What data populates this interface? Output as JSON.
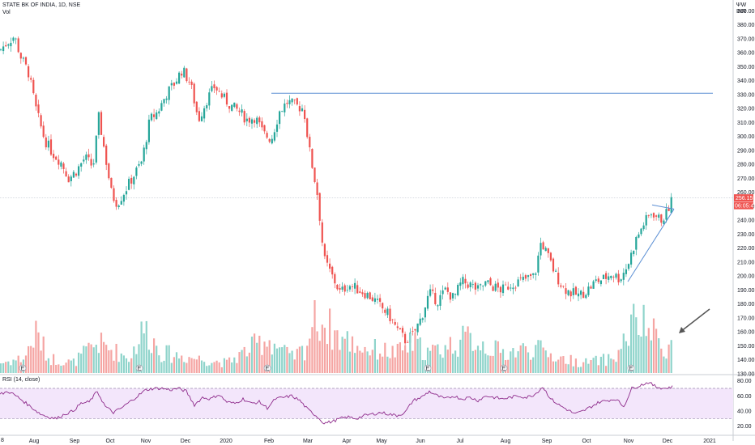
{
  "header": {
    "symbol_line": "STATE BK OF INDIA, 1D, NSE",
    "vol_label": "Vol",
    "currency_top": "ΨW",
    "currency": "INR",
    "left_edge": "8"
  },
  "price_tag": {
    "price": "256.15",
    "countdown": "06:05:42"
  },
  "rsi": {
    "label": "RSI (14, close)"
  },
  "colors": {
    "up": "#26a69a",
    "down": "#ef5350",
    "vol_up": "#8fd4cb",
    "vol_down": "#f5a5a3",
    "rsi_line": "#8e2b8b",
    "rsi_band": "#f3e6fb",
    "hline": "#5b8fd4",
    "tag": "#ef5350"
  },
  "chart_data": {
    "type": "candlestick",
    "x_labels": [
      "Aug",
      "Sep",
      "Oct",
      "Nov",
      "Dec",
      "2020",
      "Feb",
      "Mar",
      "Apr",
      "May",
      "Jun",
      "Jul",
      "Aug",
      "Sep",
      "Oct",
      "Nov",
      "Dec",
      "2021"
    ],
    "y_ticks": [
      "390.00",
      "380.00",
      "370.00",
      "360.00",
      "350.00",
      "340.00",
      "330.00",
      "320.00",
      "310.00",
      "300.00",
      "290.00",
      "280.00",
      "270.00",
      "260.00",
      "250.00",
      "240.00",
      "230.00",
      "220.00",
      "210.00",
      "200.00",
      "190.00",
      "180.00",
      "170.00",
      "160.00",
      "150.00",
      "140.00",
      "130.00"
    ],
    "ylim": [
      130,
      392
    ],
    "price_path": [
      [
        0,
        362
      ],
      [
        10,
        368
      ],
      [
        18,
        372
      ],
      [
        25,
        358
      ],
      [
        35,
        346
      ],
      [
        45,
        318
      ],
      [
        55,
        298
      ],
      [
        65,
        288
      ],
      [
        75,
        282
      ],
      [
        85,
        270
      ],
      [
        95,
        276
      ],
      [
        105,
        285
      ],
      [
        115,
        278
      ],
      [
        122,
        314
      ],
      [
        130,
        286
      ],
      [
        138,
        258
      ],
      [
        145,
        252
      ],
      [
        155,
        262
      ],
      [
        165,
        272
      ],
      [
        175,
        282
      ],
      [
        185,
        312
      ],
      [
        195,
        318
      ],
      [
        205,
        330
      ],
      [
        215,
        338
      ],
      [
        225,
        348
      ],
      [
        235,
        338
      ],
      [
        245,
        312
      ],
      [
        255,
        326
      ],
      [
        265,
        336
      ],
      [
        275,
        328
      ],
      [
        285,
        322
      ],
      [
        295,
        318
      ],
      [
        305,
        312
      ],
      [
        315,
        314
      ],
      [
        325,
        302
      ],
      [
        335,
        298
      ],
      [
        345,
        318
      ],
      [
        355,
        325
      ],
      [
        365,
        322
      ],
      [
        375,
        320
      ],
      [
        382,
        290
      ],
      [
        392,
        258
      ],
      [
        400,
        212
      ],
      [
        410,
        200
      ],
      [
        420,
        188
      ],
      [
        430,
        194
      ],
      [
        440,
        191
      ],
      [
        450,
        188
      ],
      [
        460,
        184
      ],
      [
        470,
        178
      ],
      [
        480,
        172
      ],
      [
        490,
        162
      ],
      [
        500,
        154
      ],
      [
        510,
        158
      ],
      [
        520,
        170
      ],
      [
        530,
        188
      ],
      [
        540,
        182
      ],
      [
        550,
        190
      ],
      [
        560,
        184
      ],
      [
        570,
        196
      ],
      [
        580,
        194
      ],
      [
        590,
        190
      ],
      [
        600,
        195
      ],
      [
        610,
        192
      ],
      [
        620,
        190
      ],
      [
        630,
        194
      ],
      [
        640,
        196
      ],
      [
        650,
        198
      ],
      [
        660,
        200
      ],
      [
        668,
        225
      ],
      [
        675,
        216
      ],
      [
        685,
        202
      ],
      [
        695,
        192
      ],
      [
        705,
        188
      ],
      [
        715,
        186
      ],
      [
        725,
        190
      ],
      [
        735,
        196
      ],
      [
        745,
        198
      ],
      [
        755,
        202
      ],
      [
        765,
        198
      ],
      [
        775,
        208
      ],
      [
        785,
        226
      ],
      [
        795,
        238
      ],
      [
        805,
        246
      ],
      [
        815,
        240
      ],
      [
        822,
        244
      ],
      [
        830,
        256
      ]
    ],
    "volume_path": [
      [
        0,
        2
      ],
      [
        30,
        3
      ],
      [
        45,
        8
      ],
      [
        60,
        3
      ],
      [
        90,
        2
      ],
      [
        120,
        6
      ],
      [
        160,
        3
      ],
      [
        178,
        9
      ],
      [
        200,
        4
      ],
      [
        240,
        3
      ],
      [
        280,
        2
      ],
      [
        330,
        7
      ],
      [
        360,
        3
      ],
      [
        378,
        5
      ],
      [
        388,
        12
      ],
      [
        400,
        10
      ],
      [
        420,
        7
      ],
      [
        450,
        5
      ],
      [
        490,
        4
      ],
      [
        510,
        6
      ],
      [
        530,
        4
      ],
      [
        580,
        7
      ],
      [
        620,
        4
      ],
      [
        660,
        5
      ],
      [
        690,
        3
      ],
      [
        720,
        2
      ],
      [
        760,
        3
      ],
      [
        782,
        10
      ],
      [
        800,
        9
      ],
      [
        820,
        5
      ],
      [
        830,
        6
      ]
    ],
    "rsi_path": [
      [
        0,
        62
      ],
      [
        10,
        66
      ],
      [
        20,
        60
      ],
      [
        30,
        52
      ],
      [
        40,
        44
      ],
      [
        50,
        36
      ],
      [
        60,
        32
      ],
      [
        70,
        30
      ],
      [
        80,
        36
      ],
      [
        90,
        40
      ],
      [
        100,
        50
      ],
      [
        110,
        52
      ],
      [
        120,
        66
      ],
      [
        130,
        46
      ],
      [
        140,
        38
      ],
      [
        150,
        44
      ],
      [
        160,
        52
      ],
      [
        170,
        60
      ],
      [
        180,
        68
      ],
      [
        190,
        70
      ],
      [
        200,
        70
      ],
      [
        210,
        68
      ],
      [
        220,
        70
      ],
      [
        230,
        66
      ],
      [
        240,
        48
      ],
      [
        250,
        58
      ],
      [
        260,
        56
      ],
      [
        270,
        62
      ],
      [
        280,
        52
      ],
      [
        290,
        50
      ],
      [
        300,
        56
      ],
      [
        310,
        50
      ],
      [
        320,
        52
      ],
      [
        330,
        44
      ],
      [
        340,
        56
      ],
      [
        350,
        58
      ],
      [
        360,
        60
      ],
      [
        370,
        54
      ],
      [
        380,
        42
      ],
      [
        390,
        34
      ],
      [
        400,
        24
      ],
      [
        410,
        26
      ],
      [
        420,
        30
      ],
      [
        430,
        32
      ],
      [
        440,
        30
      ],
      [
        450,
        34
      ],
      [
        460,
        36
      ],
      [
        470,
        38
      ],
      [
        480,
        36
      ],
      [
        490,
        34
      ],
      [
        500,
        38
      ],
      [
        510,
        54
      ],
      [
        520,
        58
      ],
      [
        530,
        66
      ],
      [
        540,
        60
      ],
      [
        550,
        56
      ],
      [
        560,
        60
      ],
      [
        570,
        56
      ],
      [
        580,
        58
      ],
      [
        590,
        54
      ],
      [
        600,
        60
      ],
      [
        610,
        58
      ],
      [
        620,
        56
      ],
      [
        630,
        58
      ],
      [
        640,
        60
      ],
      [
        650,
        58
      ],
      [
        660,
        62
      ],
      [
        670,
        72
      ],
      [
        680,
        56
      ],
      [
        690,
        48
      ],
      [
        700,
        42
      ],
      [
        710,
        36
      ],
      [
        720,
        40
      ],
      [
        730,
        46
      ],
      [
        740,
        52
      ],
      [
        750,
        54
      ],
      [
        760,
        56
      ],
      [
        770,
        46
      ],
      [
        780,
        70
      ],
      [
        790,
        74
      ],
      [
        800,
        78
      ],
      [
        810,
        72
      ],
      [
        820,
        70
      ],
      [
        830,
        72
      ]
    ],
    "rsi_ticks": [
      "80.00",
      "60.00",
      "40.00",
      "20.00"
    ],
    "rsi_lim": [
      10,
      85
    ],
    "rsi_bands": [
      30,
      70
    ],
    "hline_value": 331,
    "grid": false
  }
}
